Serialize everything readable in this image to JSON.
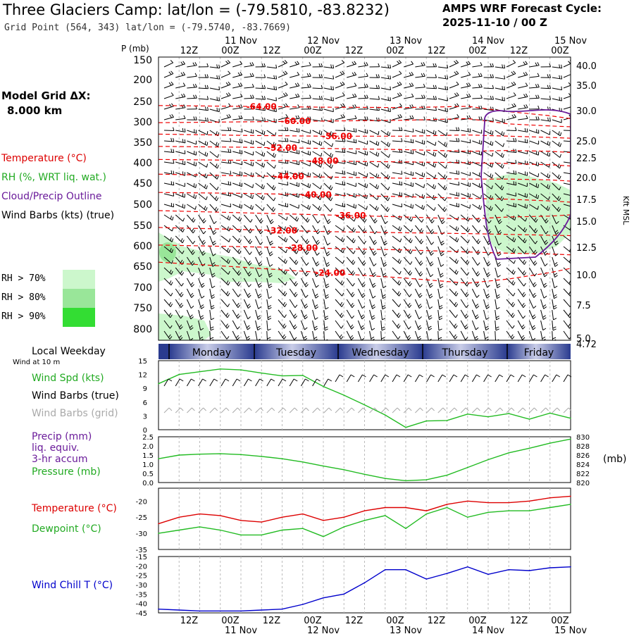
{
  "header": {
    "title": "Three Glaciers Camp:  lat/lon = (-79.5810, -83.8232)",
    "subtitle": "Grid Point (564, 343) lat/lon = (-79.5740, -83.7669)",
    "cycle_line1": "AMPS WRF Forecast Cycle:",
    "cycle_line2": "2025-11-10 / 00  Z"
  },
  "model_grid": {
    "label": "Model Grid ΔX:",
    "value": "8.000 km"
  },
  "legend": {
    "temperature": "Temperature (°C)",
    "rh": "RH (%, WRT liq. wat.)",
    "cloud": "Cloud/Precip Outline",
    "wind_barbs": "Wind Barbs (kts) (true)",
    "rh70": "RH > 70%",
    "rh80": "RH > 80%",
    "rh90": "RH > 90%",
    "colors": {
      "temperature": "#ff0000",
      "rh": "#22aa22",
      "cloud": "#6a1b9a",
      "rh70": "#ccf7cc",
      "rh80": "#99e699",
      "rh90": "#33dd33"
    }
  },
  "time_axis": {
    "ticks": [
      "12Z",
      "00Z",
      "12Z",
      "00Z",
      "12Z",
      "00Z",
      "12Z",
      "00Z",
      "12Z",
      "00Z"
    ],
    "dates": [
      "11 Nov",
      "12 Nov",
      "13 Nov",
      "14 Nov",
      "15 Nov"
    ]
  },
  "weekday_bar": {
    "label": "Local Weekday",
    "days": [
      "Monday",
      "Tuesday",
      "Wednesday",
      "Thursday",
      "Friday"
    ]
  },
  "surface_panel": {
    "wind_note": "Wind at 10 m",
    "wind_spd": "Wind Spd (kts)",
    "barbs_true": "Wind Barbs (true)",
    "barbs_grid": "Wind Barbs (grid)"
  },
  "precip_panel": {
    "precip_line1": "Precip (mm)",
    "precip_line2": "liq. equiv.",
    "precip_line3": "3-hr accum",
    "pressure": "Pressure (mb)",
    "right_unit": "(mb)"
  },
  "temp_panel": {
    "temperature": "Temperature (°C)",
    "dewpoint": "Dewpoint (°C)"
  },
  "chill_panel": {
    "wind_chill": "Wind Chill T (°C)"
  },
  "chart_data": [
    {
      "type": "line",
      "panel": "cross-section",
      "y_left_label": "P (mb)",
      "y_right_label": "Kft MSL",
      "y_left_ticks": [
        150,
        200,
        250,
        300,
        350,
        400,
        450,
        500,
        550,
        600,
        650,
        700,
        750,
        800
      ],
      "y_right_ticks": [
        "40.0",
        "35.0",
        "30.0",
        "25.0",
        "22.5",
        "20.0",
        "17.5",
        "15.0",
        "12.5",
        "10.0",
        "7.5",
        "5.0",
        "4.72"
      ],
      "temperature_contour_labels": [
        "-64.00",
        "-60.00",
        "-56.00",
        "-52.00",
        "-48.00",
        "-44.00",
        "-40.00",
        "-36.00",
        "-32.00",
        "-28.00",
        "-24.00"
      ],
      "temperature_contours": [
        {
          "label": "-64.00",
          "x_hours": [
            0,
            24,
            48,
            72,
            90,
            102,
            114,
            120
          ],
          "p": [
            260,
            262,
            264,
            265,
            262,
            275,
            285,
            292
          ]
        },
        {
          "label": "-60.00",
          "x_hours": [
            0,
            24,
            48,
            72,
            90,
            102,
            114,
            120
          ],
          "p": [
            302,
            300,
            298,
            296,
            292,
            305,
            310,
            312
          ]
        },
        {
          "label": "-56.00",
          "x_hours": [
            0,
            24,
            48,
            72,
            90,
            102,
            114,
            120
          ],
          "p": [
            330,
            333,
            335,
            335,
            332,
            335,
            338,
            340
          ]
        },
        {
          "label": "-52.00",
          "x_hours": [
            0,
            24,
            48,
            72,
            90,
            102,
            114,
            120
          ],
          "p": [
            360,
            362,
            365,
            368,
            372,
            370,
            372,
            375
          ]
        },
        {
          "label": "-48.00",
          "x_hours": [
            0,
            24,
            48,
            72,
            90,
            102,
            114,
            120
          ],
          "p": [
            392,
            394,
            396,
            398,
            400,
            402,
            405,
            408
          ]
        },
        {
          "label": "-44.00",
          "x_hours": [
            0,
            24,
            48,
            72,
            90,
            102,
            114,
            120
          ],
          "p": [
            428,
            432,
            435,
            438,
            440,
            440,
            442,
            445
          ]
        },
        {
          "label": "-40.00",
          "x_hours": [
            0,
            24,
            48,
            72,
            90,
            102,
            114,
            120
          ],
          "p": [
            472,
            474,
            478,
            482,
            486,
            488,
            492,
            495
          ]
        },
        {
          "label": "-36.00",
          "x_hours": [
            0,
            24,
            48,
            72,
            90,
            102,
            114,
            120
          ],
          "p": [
            515,
            520,
            525,
            530,
            535,
            530,
            528,
            525
          ]
        },
        {
          "label": "-32.00",
          "x_hours": [
            0,
            24,
            48,
            72,
            90,
            102,
            114,
            120
          ],
          "p": [
            555,
            560,
            565,
            568,
            570,
            572,
            574,
            575
          ]
        },
        {
          "label": "-28.00",
          "x_hours": [
            0,
            24,
            48,
            72,
            90,
            102,
            114,
            120
          ],
          "p": [
            598,
            602,
            606,
            610,
            615,
            618,
            620,
            622
          ]
        },
        {
          "label": "-24.00",
          "x_hours": [
            0,
            24,
            48,
            72,
            90,
            102,
            114,
            120
          ],
          "p": [
            640,
            652,
            665,
            678,
            690,
            680,
            665,
            655
          ]
        }
      ]
    },
    {
      "type": "line",
      "panel": "surface-wind",
      "y_ticks": [
        0,
        3,
        6,
        9,
        12,
        15
      ],
      "ylim": [
        0,
        15
      ],
      "series": [
        {
          "name": "Wind Spd (kts)",
          "color": "#22bb22",
          "x_hours": [
            0,
            6,
            12,
            18,
            24,
            30,
            36,
            42,
            48,
            54,
            60,
            66,
            72,
            78,
            84,
            90,
            96,
            102,
            108,
            114,
            120
          ],
          "values": [
            10.0,
            12.0,
            12.6,
            13.2,
            13.0,
            12.3,
            11.7,
            11.8,
            9.4,
            7.5,
            5.4,
            3.2,
            0.5,
            1.9,
            2.0,
            3.4,
            2.8,
            3.5,
            2.3,
            3.6,
            2.5
          ]
        }
      ]
    },
    {
      "type": "line",
      "panel": "precip-pressure",
      "y_left_ticks": [
        "0.0",
        "0.5",
        "1.0",
        "1.5",
        "2.0",
        "2.5"
      ],
      "y_right_ticks": [
        "820",
        "822",
        "824",
        "826",
        "828",
        "830"
      ],
      "ylim": [
        820,
        830
      ],
      "series": [
        {
          "name": "Pressure (mb)",
          "color": "#22bb22",
          "x_hours": [
            0,
            6,
            12,
            18,
            24,
            30,
            36,
            42,
            48,
            54,
            60,
            66,
            72,
            78,
            84,
            90,
            96,
            102,
            108,
            114,
            120
          ],
          "values": [
            825.2,
            826.0,
            826.2,
            826.3,
            826.1,
            825.7,
            825.2,
            824.5,
            823.6,
            822.8,
            821.8,
            820.9,
            820.4,
            820.6,
            821.6,
            823.3,
            825.0,
            826.5,
            827.5,
            828.6,
            829.5
          ]
        }
      ]
    },
    {
      "type": "line",
      "panel": "temperature-dewpoint",
      "y_ticks": [
        -35,
        -30,
        -25,
        -20
      ],
      "ylim": [
        -35,
        -16
      ],
      "series": [
        {
          "name": "Temperature (°C)",
          "color": "#dd0000",
          "x_hours": [
            0,
            6,
            12,
            18,
            24,
            30,
            36,
            42,
            48,
            54,
            60,
            66,
            72,
            78,
            84,
            90,
            96,
            102,
            108,
            114,
            120
          ],
          "values": [
            -27,
            -25,
            -24,
            -24.5,
            -26,
            -26.5,
            -25,
            -24,
            -26,
            -25,
            -23,
            -22,
            -22,
            -23,
            -21,
            -20,
            -20.5,
            -20.5,
            -20,
            -19,
            -18.5
          ]
        },
        {
          "name": "Dewpoint (°C)",
          "color": "#22bb22",
          "x_hours": [
            0,
            6,
            12,
            18,
            24,
            30,
            36,
            42,
            48,
            54,
            60,
            66,
            72,
            78,
            84,
            90,
            96,
            102,
            108,
            114,
            120
          ],
          "values": [
            -30,
            -29,
            -28,
            -29,
            -30.5,
            -30.5,
            -29,
            -28.5,
            -31,
            -28,
            -26,
            -24.5,
            -28.5,
            -24,
            -22,
            -25,
            -23.5,
            -23,
            -23,
            -22,
            -21
          ]
        }
      ]
    },
    {
      "type": "line",
      "panel": "wind-chill",
      "y_ticks": [
        -45,
        -40,
        -35,
        -30,
        -25,
        -20,
        -15
      ],
      "ylim": [
        -45,
        -15
      ],
      "series": [
        {
          "name": "Wind Chill T (°C)",
          "color": "#0000cc",
          "x_hours": [
            0,
            6,
            12,
            18,
            24,
            30,
            36,
            42,
            48,
            54,
            60,
            66,
            72,
            78,
            84,
            90,
            96,
            102,
            108,
            114,
            120
          ],
          "values": [
            -43,
            -43.5,
            -44,
            -44,
            -44,
            -43.5,
            -43,
            -40.5,
            -37,
            -35,
            -29,
            -22,
            -22,
            -27,
            -24,
            -20.5,
            -24.5,
            -22,
            -22.5,
            -21,
            -20.5
          ]
        }
      ]
    }
  ]
}
